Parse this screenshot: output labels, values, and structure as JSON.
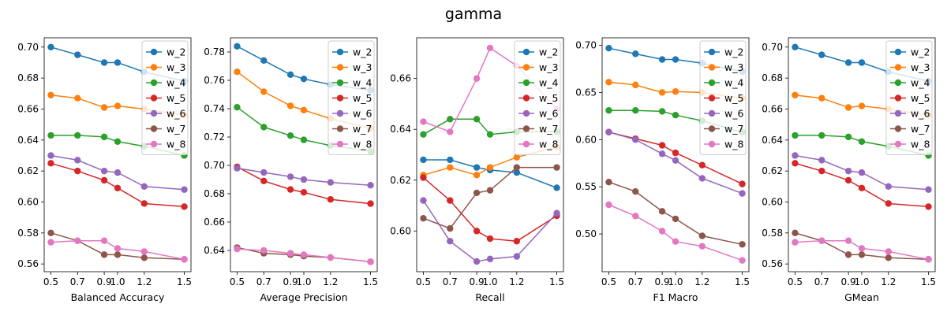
{
  "figure": {
    "title": "gamma"
  },
  "chart_data": [
    {
      "type": "line",
      "xlabel": "Balanced Accuracy",
      "x": [
        0.5,
        0.7,
        0.9,
        1.0,
        1.2,
        1.5
      ],
      "xticks": [
        "0.5",
        "0.7",
        "0.9",
        "1.0",
        "1.2",
        "1.5"
      ],
      "ylim": [
        0.555,
        0.706
      ],
      "yticks": [
        0.56,
        0.58,
        0.6,
        0.62,
        0.64,
        0.66,
        0.68,
        0.7
      ],
      "ytick_labels": [
        "0.56",
        "0.58",
        "0.60",
        "0.62",
        "0.64",
        "0.66",
        "0.68",
        "0.70"
      ],
      "legend": "top-right",
      "series": [
        {
          "name": "w_2",
          "values": [
            0.7,
            0.695,
            0.69,
            0.69,
            0.684,
            0.678
          ]
        },
        {
          "name": "w_3",
          "values": [
            0.669,
            0.667,
            0.661,
            0.662,
            0.66,
            0.656
          ]
        },
        {
          "name": "w_4",
          "values": [
            0.643,
            0.643,
            0.642,
            0.639,
            0.636,
            0.63
          ]
        },
        {
          "name": "w_5",
          "values": [
            0.625,
            0.62,
            0.614,
            0.609,
            0.599,
            0.597
          ]
        },
        {
          "name": "w_6",
          "values": [
            0.63,
            0.627,
            0.62,
            0.619,
            0.61,
            0.608
          ]
        },
        {
          "name": "w_7",
          "values": [
            0.58,
            0.575,
            0.566,
            0.566,
            0.564,
            0.563
          ]
        },
        {
          "name": "w_8",
          "values": [
            0.574,
            0.575,
            0.575,
            0.57,
            0.568,
            0.563
          ]
        }
      ]
    },
    {
      "type": "line",
      "xlabel": "Average Precision",
      "x": [
        0.5,
        0.7,
        0.9,
        1.0,
        1.2,
        1.5
      ],
      "xticks": [
        "0.5",
        "0.7",
        "0.9",
        "1.0",
        "1.2",
        "1.5"
      ],
      "ylim": [
        0.625,
        0.79
      ],
      "yticks": [
        0.64,
        0.66,
        0.68,
        0.7,
        0.72,
        0.74,
        0.76,
        0.78
      ],
      "ytick_labels": [
        "0.64",
        "0.66",
        "0.68",
        "0.70",
        "0.72",
        "0.74",
        "0.76",
        "0.78"
      ],
      "legend": "top-right",
      "series": [
        {
          "name": "w_2",
          "values": [
            0.784,
            0.774,
            0.764,
            0.761,
            0.757,
            0.753
          ]
        },
        {
          "name": "w_3",
          "values": [
            0.766,
            0.752,
            0.742,
            0.739,
            0.733,
            0.726
          ]
        },
        {
          "name": "w_4",
          "values": [
            0.741,
            0.727,
            0.721,
            0.718,
            0.714,
            0.71
          ]
        },
        {
          "name": "w_5",
          "values": [
            0.699,
            0.689,
            0.683,
            0.681,
            0.676,
            0.673
          ]
        },
        {
          "name": "w_6",
          "values": [
            0.698,
            0.695,
            0.692,
            0.69,
            0.688,
            0.686
          ]
        },
        {
          "name": "w_7",
          "values": [
            0.642,
            0.638,
            0.637,
            0.636,
            0.635,
            0.632
          ]
        },
        {
          "name": "w_8",
          "values": [
            0.641,
            0.64,
            0.638,
            0.637,
            0.635,
            0.632
          ]
        }
      ]
    },
    {
      "type": "line",
      "xlabel": "Recall",
      "x": [
        0.5,
        0.7,
        0.9,
        1.0,
        1.2,
        1.5
      ],
      "xticks": [
        "0.5",
        "0.7",
        "0.9",
        "1.0",
        "1.2",
        "1.5"
      ],
      "ylim": [
        0.584,
        0.676
      ],
      "yticks": [
        0.6,
        0.62,
        0.64,
        0.66
      ],
      "ytick_labels": [
        "0.60",
        "0.62",
        "0.64",
        "0.66"
      ],
      "legend": "top-right",
      "series": [
        {
          "name": "w_2",
          "values": [
            0.628,
            0.628,
            0.625,
            0.624,
            0.623,
            0.617
          ]
        },
        {
          "name": "w_3",
          "values": [
            0.622,
            0.625,
            0.622,
            0.625,
            0.629,
            0.633
          ]
        },
        {
          "name": "w_4",
          "values": [
            0.638,
            0.644,
            0.644,
            0.638,
            0.639,
            0.639
          ]
        },
        {
          "name": "w_5",
          "values": [
            0.621,
            0.612,
            0.6,
            0.597,
            0.596,
            0.606
          ]
        },
        {
          "name": "w_6",
          "values": [
            0.612,
            0.596,
            0.588,
            0.589,
            0.59,
            0.607
          ]
        },
        {
          "name": "w_7",
          "values": [
            0.605,
            0.601,
            0.615,
            0.616,
            0.625,
            0.625
          ]
        },
        {
          "name": "w_8",
          "values": [
            0.643,
            0.639,
            0.66,
            0.672,
            0.665,
            0.648
          ]
        }
      ]
    },
    {
      "type": "line",
      "xlabel": "F1 Macro",
      "x": [
        0.5,
        0.7,
        0.9,
        1.0,
        1.2,
        1.5
      ],
      "xticks": [
        "0.5",
        "0.7",
        "0.9",
        "1.0",
        "1.2",
        "1.5"
      ],
      "ylim": [
        0.46,
        0.708
      ],
      "yticks": [
        0.5,
        0.55,
        0.6,
        0.65,
        0.7
      ],
      "ytick_labels": [
        "0.50",
        "0.55",
        "0.60",
        "0.65",
        "0.70"
      ],
      "legend": "top-right",
      "series": [
        {
          "name": "w_2",
          "values": [
            0.697,
            0.691,
            0.685,
            0.685,
            0.681,
            0.672
          ]
        },
        {
          "name": "w_3",
          "values": [
            0.661,
            0.658,
            0.65,
            0.651,
            0.65,
            0.644
          ]
        },
        {
          "name": "w_4",
          "values": [
            0.631,
            0.631,
            0.63,
            0.626,
            0.62,
            0.608
          ]
        },
        {
          "name": "w_5",
          "values": [
            0.608,
            0.601,
            0.594,
            0.586,
            0.573,
            0.553
          ]
        },
        {
          "name": "w_6",
          "values": [
            0.608,
            0.6,
            0.585,
            0.578,
            0.559,
            0.543
          ]
        },
        {
          "name": "w_7",
          "values": [
            0.555,
            0.545,
            0.524,
            0.516,
            0.498,
            0.489
          ]
        },
        {
          "name": "w_8",
          "values": [
            0.531,
            0.519,
            0.503,
            0.492,
            0.487,
            0.472
          ]
        }
      ]
    },
    {
      "type": "line",
      "xlabel": "GMean",
      "x": [
        0.5,
        0.7,
        0.9,
        1.0,
        1.2,
        1.5
      ],
      "xticks": [
        "0.5",
        "0.7",
        "0.9",
        "1.0",
        "1.2",
        "1.5"
      ],
      "ylim": [
        0.555,
        0.706
      ],
      "yticks": [
        0.56,
        0.58,
        0.6,
        0.62,
        0.64,
        0.66,
        0.68,
        0.7
      ],
      "ytick_labels": [
        "0.56",
        "0.58",
        "0.60",
        "0.62",
        "0.64",
        "0.66",
        "0.68",
        "0.70"
      ],
      "legend": "top-right",
      "series": [
        {
          "name": "w_2",
          "values": [
            0.7,
            0.695,
            0.69,
            0.69,
            0.684,
            0.678
          ]
        },
        {
          "name": "w_3",
          "values": [
            0.669,
            0.667,
            0.661,
            0.662,
            0.66,
            0.656
          ]
        },
        {
          "name": "w_4",
          "values": [
            0.643,
            0.643,
            0.642,
            0.639,
            0.636,
            0.63
          ]
        },
        {
          "name": "w_5",
          "values": [
            0.625,
            0.62,
            0.614,
            0.609,
            0.599,
            0.597
          ]
        },
        {
          "name": "w_6",
          "values": [
            0.63,
            0.627,
            0.62,
            0.619,
            0.61,
            0.608
          ]
        },
        {
          "name": "w_7",
          "values": [
            0.58,
            0.575,
            0.566,
            0.566,
            0.564,
            0.563
          ]
        },
        {
          "name": "w_8",
          "values": [
            0.574,
            0.575,
            0.575,
            0.57,
            0.568,
            0.563
          ]
        }
      ]
    }
  ],
  "colors": {
    "w_2": "#1f77b4",
    "w_3": "#ff7f0e",
    "w_4": "#2ca02c",
    "w_5": "#d62728",
    "w_6": "#9467bd",
    "w_7": "#8c564b",
    "w_8": "#e377c2"
  }
}
